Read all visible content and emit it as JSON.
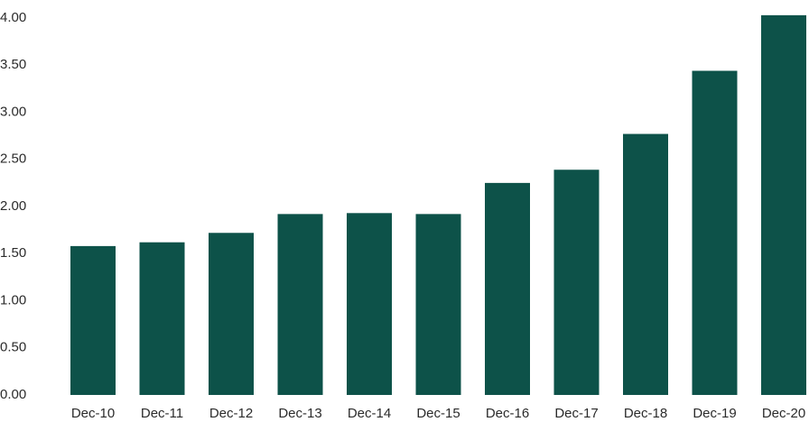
{
  "chart_data": {
    "type": "bar",
    "categories": [
      "Dec-10",
      "Dec-11",
      "Dec-12",
      "Dec-13",
      "Dec-14",
      "Dec-15",
      "Dec-16",
      "Dec-17",
      "Dec-18",
      "Dec-19",
      "Dec-20"
    ],
    "values": [
      1.58,
      1.62,
      1.72,
      1.92,
      1.93,
      1.92,
      2.25,
      2.39,
      2.77,
      3.44,
      4.03
    ],
    "color": "#0d5249",
    "ylim": [
      0,
      4
    ],
    "yticks": [
      {
        "value": 0,
        "label": "0.00"
      },
      {
        "value": 0.5,
        "label": "0.50"
      },
      {
        "value": 1,
        "label": "1.00"
      },
      {
        "value": 1.5,
        "label": "1.50"
      },
      {
        "value": 2,
        "label": "2.00"
      },
      {
        "value": 2.5,
        "label": "2.50"
      },
      {
        "value": 3,
        "label": "3.00"
      },
      {
        "value": 3.5,
        "label": "3.50"
      },
      {
        "value": 4,
        "label": "4.00"
      }
    ],
    "grid": false
  }
}
